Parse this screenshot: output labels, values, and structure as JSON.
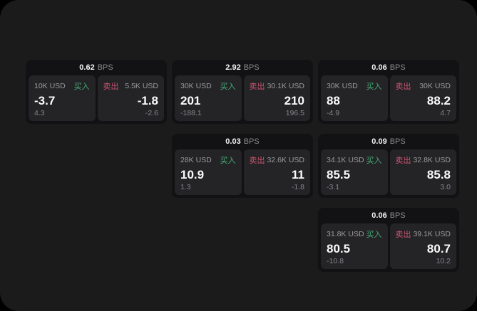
{
  "page": {
    "background": "#000000",
    "window_background": "#1b1b1c"
  },
  "labels": {
    "bps_unit": "BPS",
    "buy": "买入",
    "sell": "卖出"
  },
  "colors": {
    "buy_green": "#46ab74",
    "sell_red": "#c9536e",
    "card_bg": "#121214",
    "panel_bg": "#242427"
  },
  "cards": [
    {
      "col": 1,
      "row": 1,
      "bps": "0.62",
      "buy": {
        "amount": "10K USD",
        "price": "-3.7",
        "delta": "4.3"
      },
      "sell": {
        "amount": "5.5K USD",
        "price": "-1.8",
        "delta": "-2.6"
      }
    },
    {
      "col": 2,
      "row": 1,
      "bps": "2.92",
      "buy": {
        "amount": "30K USD",
        "price": "201",
        "delta": "-188.1"
      },
      "sell": {
        "amount": "30.1K USD",
        "price": "210",
        "delta": "196.5"
      }
    },
    {
      "col": 3,
      "row": 1,
      "bps": "0.06",
      "buy": {
        "amount": "30K USD",
        "price": "88",
        "delta": "-4.9"
      },
      "sell": {
        "amount": "30K USD",
        "price": "88.2",
        "delta": "4.7"
      }
    },
    {
      "col": 2,
      "row": 2,
      "bps": "0.03",
      "buy": {
        "amount": "28K USD",
        "price": "10.9",
        "delta": "1.3"
      },
      "sell": {
        "amount": "32.6K USD",
        "price": "11",
        "delta": "-1.8"
      }
    },
    {
      "col": 3,
      "row": 2,
      "bps": "0.09",
      "buy": {
        "amount": "34.1K USD",
        "price": "85.5",
        "delta": "-3.1"
      },
      "sell": {
        "amount": "32.8K USD",
        "price": "85.8",
        "delta": "3.0"
      }
    },
    {
      "col": 3,
      "row": 3,
      "bps": "0.06",
      "buy": {
        "amount": "31.8K USD",
        "price": "80.5",
        "delta": "-10.8"
      },
      "sell": {
        "amount": "39.1K USD",
        "price": "80.7",
        "delta": "10.2"
      }
    }
  ]
}
